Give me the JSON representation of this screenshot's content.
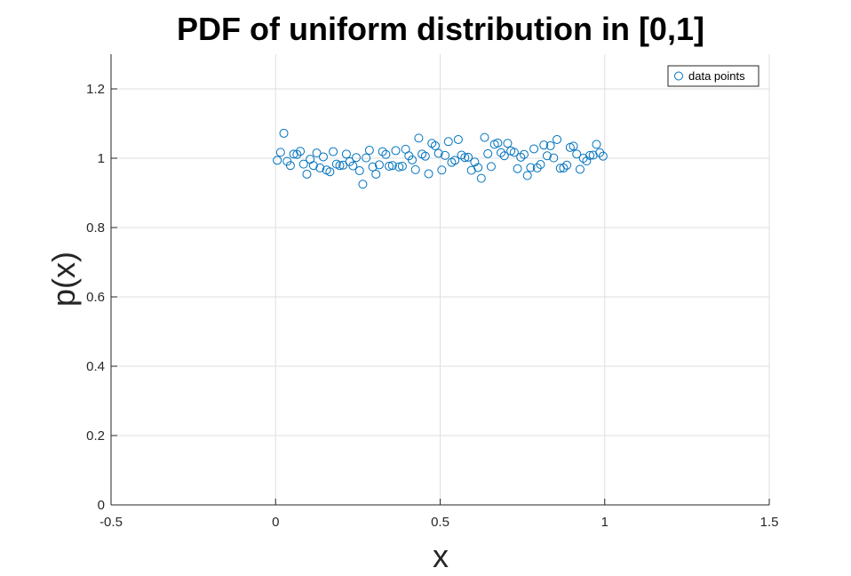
{
  "chart_data": {
    "type": "scatter",
    "title": "PDF of uniform distribution in [0,1]",
    "xlabel": "x",
    "ylabel": "p(x)",
    "xlim": [
      -0.5,
      1.5
    ],
    "ylim": [
      0,
      1.3
    ],
    "xticks": [
      -0.5,
      0,
      0.5,
      1,
      1.5
    ],
    "xtick_labels": [
      "-0.5",
      "0",
      "0.5",
      "1",
      "1.5"
    ],
    "yticks": [
      0,
      0.2,
      0.4,
      0.6,
      0.8,
      1,
      1.2
    ],
    "ytick_labels": [
      "0",
      "0.2",
      "0.4",
      "0.6",
      "0.8",
      "1",
      "1.2"
    ],
    "grid": true,
    "legend_position": "top-right",
    "marker": "open-circle",
    "marker_color": "#0072bd",
    "series": [
      {
        "name": "data points",
        "x": [
          0.005,
          0.015,
          0.025,
          0.035,
          0.045,
          0.055,
          0.065,
          0.075,
          0.085,
          0.095,
          0.105,
          0.115,
          0.125,
          0.135,
          0.145,
          0.155,
          0.165,
          0.175,
          0.185,
          0.195,
          0.205,
          0.215,
          0.225,
          0.235,
          0.245,
          0.255,
          0.265,
          0.275,
          0.285,
          0.295,
          0.305,
          0.315,
          0.325,
          0.335,
          0.345,
          0.355,
          0.365,
          0.375,
          0.385,
          0.395,
          0.405,
          0.415,
          0.425,
          0.435,
          0.445,
          0.455,
          0.465,
          0.475,
          0.485,
          0.495,
          0.505,
          0.515,
          0.525,
          0.535,
          0.545,
          0.555,
          0.565,
          0.575,
          0.585,
          0.595,
          0.605,
          0.615,
          0.625,
          0.635,
          0.645,
          0.655,
          0.665,
          0.675,
          0.685,
          0.695,
          0.705,
          0.715,
          0.725,
          0.735,
          0.745,
          0.755,
          0.765,
          0.775,
          0.785,
          0.795,
          0.805,
          0.815,
          0.825,
          0.835,
          0.845,
          0.855,
          0.865,
          0.875,
          0.885,
          0.895,
          0.905,
          0.915,
          0.925,
          0.935,
          0.945,
          0.955,
          0.965,
          0.975,
          0.985,
          0.995
        ],
        "y": [
          0.994,
          1.017,
          1.072,
          0.991,
          0.979,
          1.012,
          1.011,
          1.02,
          0.983,
          0.954,
          0.997,
          0.979,
          1.015,
          0.972,
          1.004,
          0.966,
          0.961,
          1.019,
          0.983,
          0.979,
          0.98,
          1.012,
          0.99,
          0.978,
          1.002,
          0.964,
          0.925,
          1.001,
          1.023,
          0.975,
          0.954,
          0.981,
          1.019,
          1.011,
          0.977,
          0.979,
          1.022,
          0.975,
          0.977,
          1.026,
          1.007,
          0.995,
          0.967,
          1.058,
          1.012,
          1.006,
          0.955,
          1.043,
          1.036,
          1.014,
          0.966,
          1.008,
          1.048,
          0.988,
          0.994,
          1.054,
          1.009,
          1.002,
          1.003,
          0.965,
          0.989,
          0.973,
          0.942,
          1.06,
          1.013,
          0.976,
          1.04,
          1.044,
          1.016,
          1.007,
          1.043,
          1.021,
          1.017,
          0.97,
          1.003,
          1.011,
          0.95,
          0.973,
          1.027,
          0.972,
          0.982,
          1.038,
          1.007,
          1.036,
          1.001,
          1.054,
          0.971,
          0.972,
          0.98,
          1.031,
          1.035,
          1.012,
          0.968,
          1.0,
          0.992,
          1.008,
          1.009,
          1.04,
          1.016,
          1.006
        ]
      }
    ]
  }
}
